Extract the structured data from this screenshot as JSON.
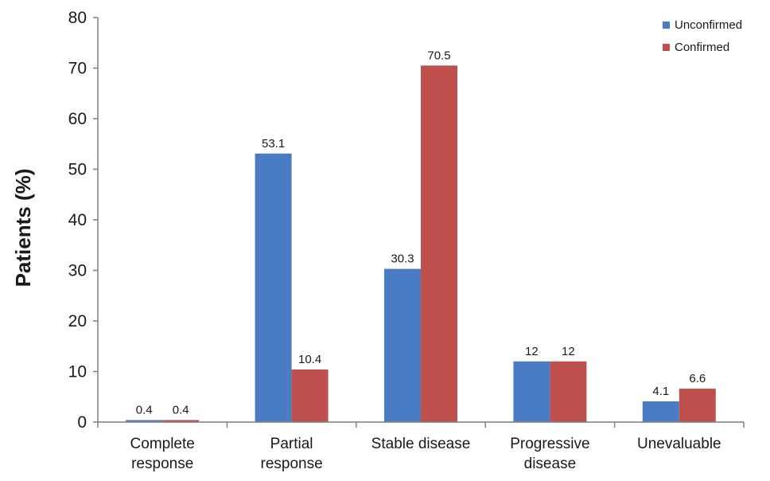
{
  "chart_data": {
    "type": "bar",
    "categories": [
      [
        "Complete",
        "response"
      ],
      [
        "Partial",
        "response"
      ],
      [
        "Stable disease"
      ],
      [
        "Progressive",
        "disease"
      ],
      [
        "Unevaluable"
      ]
    ],
    "series": [
      {
        "name": "Unconfirmed",
        "color": "#4a7cc3",
        "values": [
          0.4,
          53.1,
          30.3,
          12,
          4.1
        ],
        "labels": [
          "0.4",
          "53.1",
          "30.3",
          "12",
          "4.1"
        ]
      },
      {
        "name": "Confirmed",
        "color": "#c0504d",
        "values": [
          0.4,
          10.4,
          70.5,
          12,
          6.6
        ],
        "labels": [
          "0.4",
          "10.4",
          "70.5",
          "12",
          "6.6"
        ]
      }
    ],
    "ylabel": "Patients (%)",
    "ylim": [
      0,
      80
    ],
    "yticks": [
      0,
      10,
      20,
      30,
      40,
      50,
      60,
      70,
      80
    ],
    "grid": false,
    "legend": "top-right"
  }
}
